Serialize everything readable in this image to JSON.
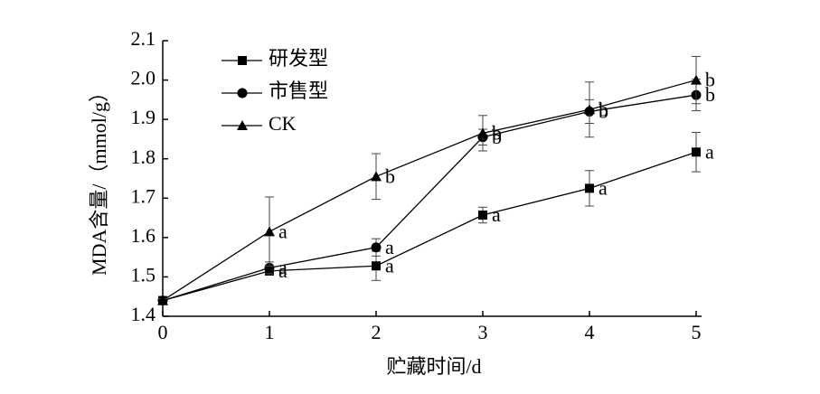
{
  "chart_data": {
    "type": "line",
    "x_label": "贮藏时间/d",
    "y_label": "MDA含量/（mmol/g）",
    "xlim": [
      0,
      5
    ],
    "xticks": [
      0,
      1,
      2,
      3,
      4,
      5
    ],
    "ylim": [
      1.4,
      2.1
    ],
    "yticks": [
      1.4,
      1.5,
      1.6,
      1.7,
      1.8,
      1.9,
      {
        "value": 2,
        "label": "2.0"
      },
      2.1
    ],
    "x": [
      0,
      1,
      2,
      3,
      4,
      5
    ],
    "legend": "upper left",
    "series": [
      {
        "name": "研发型",
        "color": "#000000",
        "marker": "square",
        "values": [
          1.44,
          1.515,
          1.528,
          1.657,
          1.725,
          1.817
        ],
        "errors": [
          0.005,
          0.01,
          0.037,
          0.02,
          0.045,
          0.05
        ],
        "letters": [
          null,
          "a",
          "a",
          "a",
          "a",
          "a"
        ]
      },
      {
        "name": "市售型",
        "color": "#000000",
        "marker": "circle",
        "values": [
          1.44,
          1.523,
          1.575,
          1.855,
          1.92,
          1.962
        ],
        "errors": [
          0.005,
          0.015,
          0.022,
          0.02,
          0.03,
          0.04
        ],
        "letters": [
          null,
          "a",
          "a",
          "b",
          "b",
          "b"
        ]
      },
      {
        "name": "CK",
        "color": "#000000",
        "marker": "triangle",
        "values": [
          1.44,
          1.615,
          1.755,
          1.865,
          1.925,
          2.0
        ],
        "errors": [
          0.005,
          0.088,
          0.058,
          0.045,
          0.07,
          0.06
        ],
        "letters": [
          null,
          "a",
          "b",
          "b",
          "b",
          "b"
        ]
      }
    ]
  }
}
